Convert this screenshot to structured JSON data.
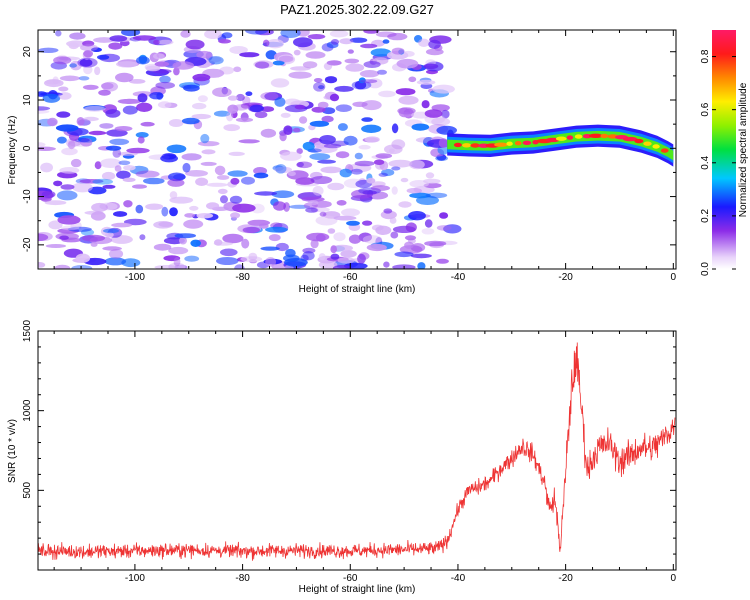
{
  "title": "PAZ1.2025.302.22.09.G27",
  "chart_data": [
    {
      "type": "heatmap",
      "title": "PAZ1.2025.302.22.09.G27",
      "xlabel": "Height of straight line (km)",
      "ylabel": "Frequency (Hz)",
      "xlim": [
        -118,
        0.5
      ],
      "ylim": [
        -25,
        24.5
      ],
      "x_ticks": [
        -100,
        -80,
        -60,
        -40,
        -20,
        0
      ],
      "x_tick_labels": [
        "-100",
        "-80",
        "-60",
        "-40",
        "-20",
        "0"
      ],
      "y_ticks": [
        -20,
        -10,
        0,
        10,
        20
      ],
      "y_tick_labels": [
        "-20",
        "-10",
        "0",
        "10",
        "20"
      ],
      "grid": false,
      "signal_ridge": {
        "description": "strong signal ridge",
        "x": [
          -42,
          -38,
          -34,
          -30,
          -26,
          -22,
          -18,
          -14,
          -10,
          -6,
          -3,
          -1,
          0
        ],
        "frequency": [
          0.8,
          0.6,
          0.5,
          1.0,
          1.2,
          1.8,
          2.4,
          2.6,
          2.4,
          1.4,
          0.3,
          -0.8,
          -1.5
        ],
        "peak_amplitude": 0.9
      },
      "noise_region": {
        "x_range": [
          -118,
          -41
        ],
        "typical_amplitude": [
          0.05,
          0.3
        ]
      },
      "colorbar": {
        "label": "Normalized spectral amplitude",
        "range": [
          0.0,
          0.9
        ],
        "ticks": [
          0.0,
          0.2,
          0.4,
          0.6,
          0.8
        ],
        "tick_labels": [
          "0.0",
          "0.2",
          "0.4",
          "0.6",
          "0.8"
        ]
      }
    },
    {
      "type": "line",
      "xlabel": "Height of straight line (km)",
      "ylabel": "SNR (10 * v/v)",
      "xlim": [
        -118,
        0.5
      ],
      "ylim": [
        0,
        1500
      ],
      "x_ticks": [
        -100,
        -80,
        -60,
        -40,
        -20,
        0
      ],
      "x_tick_labels": [
        "-100",
        "-80",
        "-60",
        "-40",
        "-20",
        "0"
      ],
      "y_ticks": [
        500,
        1000,
        1500
      ],
      "y_tick_labels": [
        "500",
        "1000",
        "1500"
      ],
      "grid": false,
      "series": [
        {
          "name": "SNR",
          "color": "#ee3333",
          "x": [
            -118,
            -110,
            -100,
            -90,
            -80,
            -70,
            -60,
            -50,
            -44,
            -42,
            -40,
            -38,
            -36,
            -34,
            -32,
            -30,
            -28,
            -26,
            -24,
            -23,
            -22,
            -21,
            -20,
            -19,
            -18,
            -17,
            -16,
            -15,
            -14,
            -12,
            -10,
            -8,
            -6,
            -4,
            -2,
            0
          ],
          "y": [
            120,
            115,
            120,
            125,
            118,
            122,
            120,
            128,
            135,
            180,
            380,
            500,
            520,
            560,
            640,
            700,
            780,
            720,
            560,
            380,
            450,
            130,
            600,
            1100,
            1350,
            1000,
            620,
            700,
            760,
            800,
            680,
            720,
            770,
            760,
            820,
            900
          ],
          "noise_amplitude": [
            70,
            70,
            70,
            70,
            70,
            70,
            70,
            70,
            70,
            70,
            70,
            80,
            80,
            80,
            90,
            90,
            100,
            100,
            100,
            100,
            120,
            80,
            200,
            240,
            200,
            200,
            150,
            150,
            150,
            150,
            150,
            150,
            150,
            150,
            150,
            150
          ]
        }
      ]
    }
  ]
}
